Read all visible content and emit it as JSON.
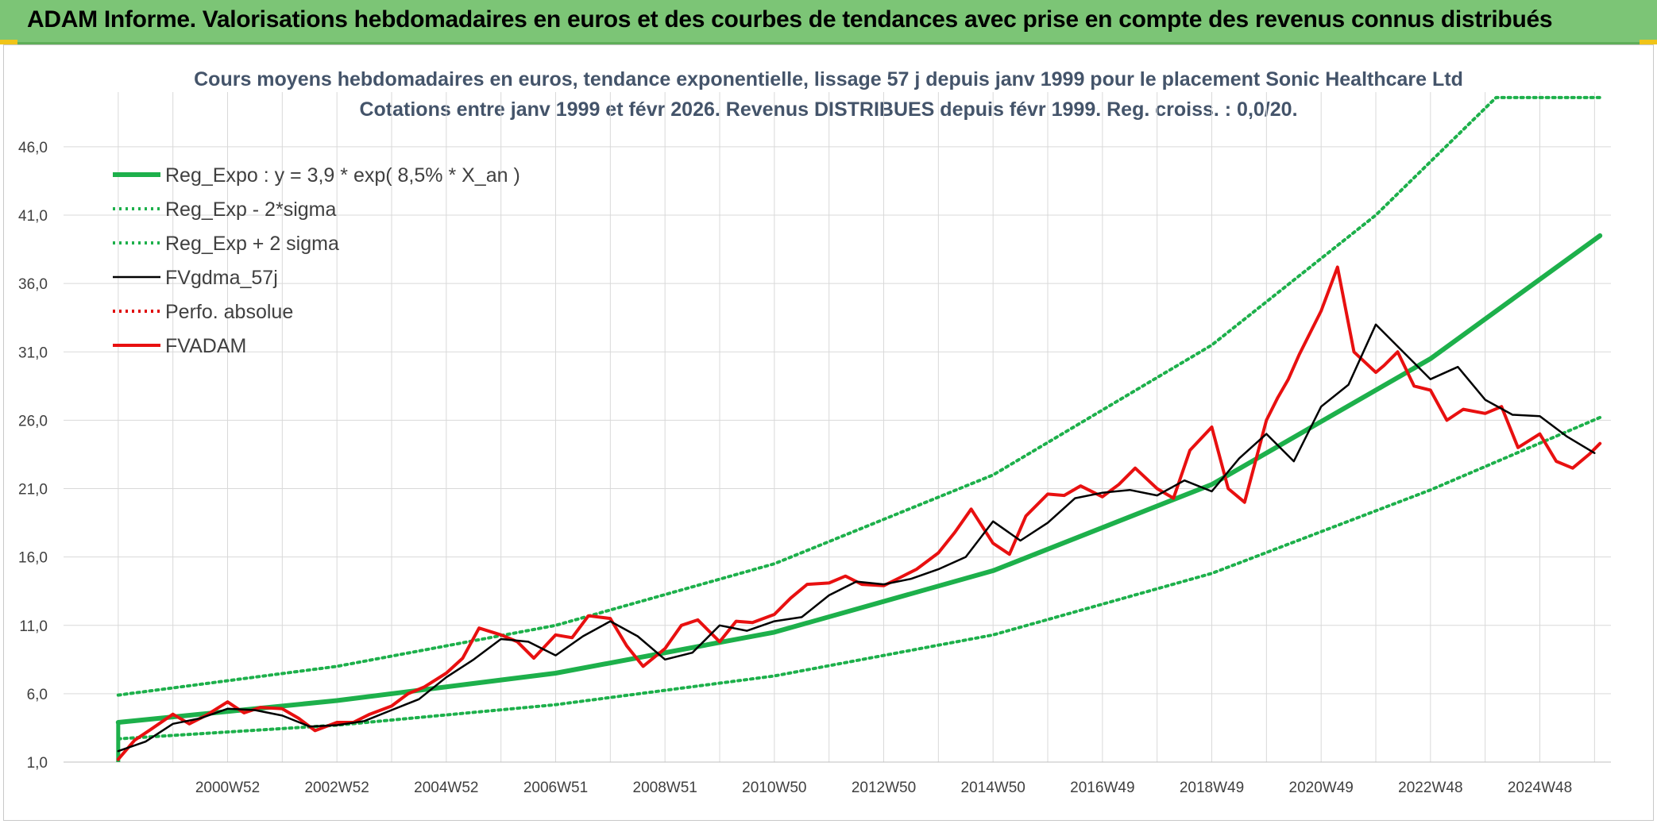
{
  "header": {
    "title": "ADAM Informe. Valorisations hebdomadaires en euros et des courbes de tendances avec prise en compte des revenus connus distribués"
  },
  "colors": {
    "header_bg": "#7cc576",
    "regression": "#1db04b",
    "sigma": "#1db04b",
    "gdma": "#000000",
    "perfo": "#e00000",
    "adam": "#e81010",
    "grid": "#d9d9d9",
    "title_text": "#44546a"
  },
  "chart_data": {
    "type": "line",
    "title_line1": "Cours moyens hebdomadaires en euros, tendance exponentielle, lissage 57 j depuis janv 1999 pour le placement Sonic Healthcare Ltd",
    "title_line2": "Cotations entre janv 1999 et févr 2026. Revenus DISTRIBUES depuis févr 1999. Reg. croiss. : 0,0/20.",
    "y_ticks": [
      "1,0",
      "6,0",
      "11,0",
      "16,0",
      "21,0",
      "26,0",
      "31,0",
      "36,0",
      "41,0",
      "46,0"
    ],
    "y_range": [
      1,
      50
    ],
    "x_ticks": [
      "2000W52",
      "2002W52",
      "2004W52",
      "2006W51",
      "2008W51",
      "2010W50",
      "2012W50",
      "2014W50",
      "2016W49",
      "2018W49",
      "2020W49",
      "2022W48",
      "2024W48"
    ],
    "x_range": [
      1998,
      2026.3
    ],
    "series": [
      {
        "name": "Reg_Expo : y = 3,9 * exp( 8,5% *  X_an )",
        "style": "thick-solid",
        "color": "#1db04b",
        "x": [
          1999.0,
          2003.0,
          2007.0,
          2011.0,
          2015.0,
          2019.0,
          2023.0,
          2026.1
        ],
        "values": [
          3.9,
          5.5,
          7.5,
          10.5,
          15.0,
          21.3,
          30.5,
          39.5
        ]
      },
      {
        "name": "Reg_Exp - 2*sigma",
        "style": "dotted",
        "color": "#1db04b",
        "x": [
          1999.0,
          2003.0,
          2007.0,
          2011.0,
          2015.0,
          2019.0,
          2023.0,
          2026.1
        ],
        "values": [
          2.7,
          3.7,
          5.2,
          7.3,
          10.3,
          14.8,
          20.9,
          26.2
        ]
      },
      {
        "name": "Reg_Exp + 2 sigma",
        "style": "dotted",
        "color": "#1db04b",
        "x": [
          1999.0,
          2003.0,
          2007.0,
          2011.0,
          2015.0,
          2019.0,
          2022.0,
          2024.2,
          2026.1
        ],
        "values": [
          5.9,
          8.0,
          11.0,
          15.5,
          22.0,
          31.5,
          41.0,
          49.6,
          49.6
        ]
      },
      {
        "name": "FVgdma_57j",
        "style": "solid",
        "color": "#000000",
        "x": [
          1999.0,
          1999.5,
          2000.0,
          2000.5,
          2001.0,
          2001.5,
          2002.0,
          2002.5,
          2003.0,
          2003.5,
          2004.0,
          2004.5,
          2005.0,
          2005.5,
          2006.0,
          2006.5,
          2007.0,
          2007.5,
          2008.0,
          2008.5,
          2009.0,
          2009.5,
          2010.0,
          2010.5,
          2011.0,
          2011.5,
          2012.0,
          2012.5,
          2013.0,
          2013.5,
          2014.0,
          2014.5,
          2015.0,
          2015.5,
          2016.0,
          2016.5,
          2017.0,
          2017.5,
          2018.0,
          2018.5,
          2019.0,
          2019.5,
          2020.0,
          2020.5,
          2021.0,
          2021.5,
          2022.0,
          2022.5,
          2023.0,
          2023.5,
          2024.0,
          2024.5,
          2025.0,
          2025.5,
          2026.0
        ],
        "values": [
          1.8,
          2.5,
          3.8,
          4.2,
          4.9,
          4.8,
          4.4,
          3.6,
          3.7,
          4.0,
          4.8,
          5.6,
          7.2,
          8.5,
          10.0,
          9.8,
          8.8,
          10.2,
          11.3,
          10.2,
          8.5,
          9.0,
          11.0,
          10.6,
          11.3,
          11.6,
          13.2,
          14.2,
          14.0,
          14.4,
          15.1,
          16.0,
          18.6,
          17.2,
          18.5,
          20.3,
          20.7,
          20.9,
          20.5,
          21.6,
          20.8,
          23.2,
          25.0,
          23.0,
          27.0,
          28.6,
          33.0,
          31.0,
          29.0,
          29.9,
          27.5,
          26.4,
          26.3,
          24.8,
          23.6
        ]
      },
      {
        "name": "Perfo. absolue",
        "style": "dotted",
        "color": "#e00000",
        "x": [],
        "values": []
      },
      {
        "name": "FVADAM",
        "style": "thick-solid",
        "color": "#e81010",
        "x": [
          1999.0,
          1999.3,
          1999.6,
          2000.0,
          2000.3,
          2000.6,
          2001.0,
          2001.3,
          2001.6,
          2002.0,
          2002.3,
          2002.6,
          2003.0,
          2003.3,
          2003.6,
          2004.0,
          2004.3,
          2004.6,
          2005.0,
          2005.3,
          2005.6,
          2006.0,
          2006.3,
          2006.6,
          2007.0,
          2007.3,
          2007.6,
          2008.0,
          2008.3,
          2008.6,
          2009.0,
          2009.3,
          2009.6,
          2010.0,
          2010.3,
          2010.6,
          2011.0,
          2011.3,
          2011.6,
          2012.0,
          2012.3,
          2012.6,
          2013.0,
          2013.3,
          2013.6,
          2014.0,
          2014.3,
          2014.6,
          2015.0,
          2015.3,
          2015.6,
          2016.0,
          2016.3,
          2016.6,
          2017.0,
          2017.3,
          2017.6,
          2018.0,
          2018.3,
          2018.6,
          2019.0,
          2019.3,
          2019.6,
          2020.0,
          2020.2,
          2020.4,
          2020.6,
          2021.0,
          2021.3,
          2021.6,
          2022.0,
          2022.15,
          2022.4,
          2022.7,
          2023.0,
          2023.3,
          2023.6,
          2024.0,
          2024.3,
          2024.6,
          2025.0,
          2025.3,
          2025.6,
          2025.9,
          2026.1
        ],
        "values": [
          1.2,
          2.6,
          3.4,
          4.5,
          3.8,
          4.4,
          5.4,
          4.6,
          5.0,
          4.9,
          4.2,
          3.3,
          3.9,
          3.9,
          4.5,
          5.1,
          6.0,
          6.5,
          7.5,
          8.6,
          10.8,
          10.3,
          9.8,
          8.6,
          10.3,
          10.1,
          11.7,
          11.5,
          9.5,
          8.0,
          9.3,
          11.0,
          11.4,
          9.8,
          11.3,
          11.2,
          11.8,
          13.0,
          14.0,
          14.1,
          14.6,
          14.0,
          13.9,
          14.5,
          15.1,
          16.3,
          17.8,
          19.5,
          17.0,
          16.2,
          19.0,
          20.6,
          20.5,
          21.2,
          20.4,
          21.3,
          22.5,
          21.0,
          20.3,
          23.8,
          25.5,
          21.0,
          20.0,
          26.0,
          27.6,
          29.0,
          30.8,
          34.0,
          37.2,
          31.0,
          29.5,
          30.0,
          31.0,
          28.5,
          28.2,
          26.0,
          26.8,
          26.5,
          27.0,
          24.0,
          25.0,
          23.0,
          22.5,
          23.5,
          24.3
        ]
      }
    ]
  }
}
